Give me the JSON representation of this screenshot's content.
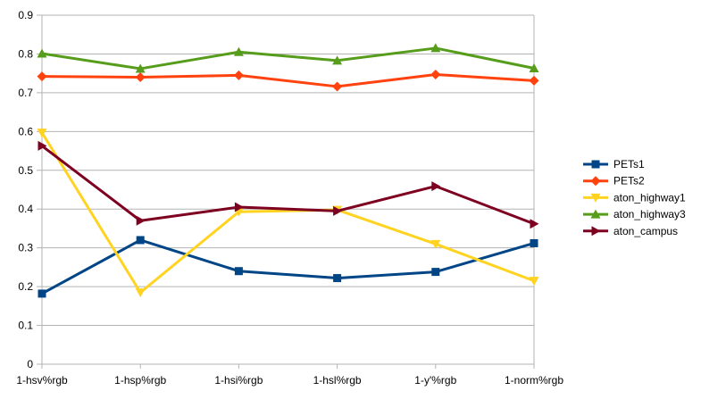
{
  "chart_data": {
    "type": "line",
    "title": "",
    "xlabel": "",
    "ylabel": "",
    "categories": [
      "1-hsv%rgb",
      "1-hsp%rgb",
      "1-hsi%rgb",
      "1-hsl%rgb",
      "1-y'%rgb",
      "1-norm%rgb"
    ],
    "ylim": [
      0,
      0.9
    ],
    "yticks": [
      0,
      0.1,
      0.2,
      0.3,
      0.4,
      0.5,
      0.6,
      0.7,
      0.8,
      0.9
    ],
    "ytick_labels": [
      "0",
      "0.1",
      "0.2",
      "0.3",
      "0.4",
      "0.5",
      "0.6",
      "0.7",
      "0.8",
      "0.9"
    ],
    "grid": true,
    "legend_position": "right",
    "series": [
      {
        "name": "PETs1",
        "color": "#004586",
        "marker": "square",
        "values": [
          0.182,
          0.32,
          0.24,
          0.222,
          0.238,
          0.312
        ]
      },
      {
        "name": "PETs2",
        "color": "#ff420e",
        "marker": "diamond",
        "values": [
          0.742,
          0.74,
          0.745,
          0.716,
          0.747,
          0.731
        ]
      },
      {
        "name": "aton_highway1",
        "color": "#ffd320",
        "marker": "triangle-down",
        "values": [
          0.597,
          0.185,
          0.393,
          0.398,
          0.31,
          0.215
        ]
      },
      {
        "name": "aton_highway3",
        "color": "#579d1c",
        "marker": "triangle-up",
        "values": [
          0.801,
          0.762,
          0.805,
          0.783,
          0.815,
          0.763
        ]
      },
      {
        "name": "aton_campus",
        "color": "#7e0021",
        "marker": "triangle-right",
        "values": [
          0.563,
          0.37,
          0.405,
          0.395,
          0.459,
          0.362
        ]
      }
    ]
  }
}
